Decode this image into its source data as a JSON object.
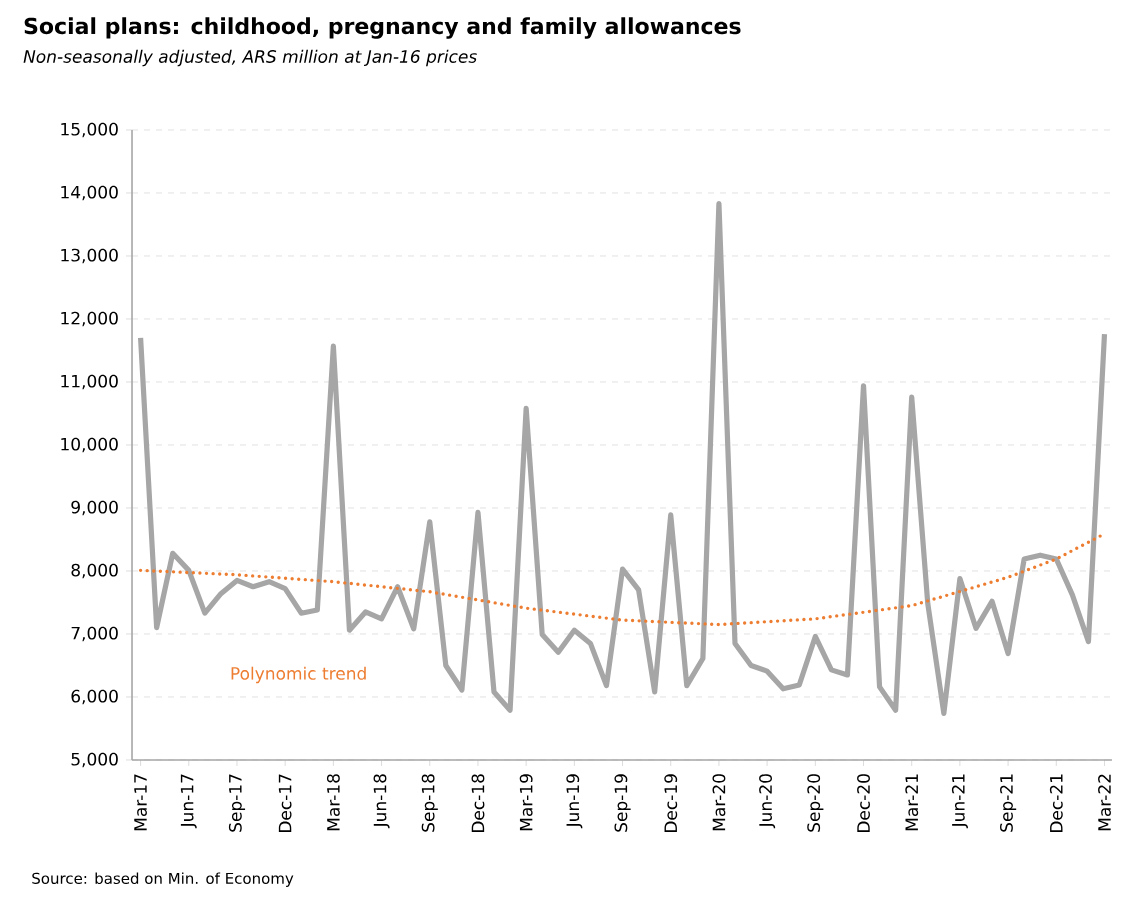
{
  "chart_data": {
    "type": "line",
    "title": "Social plans: childhood, pregnancy and family allowances",
    "subtitle": "Non-seasonally adjusted, ARS million at Jan-16 prices",
    "x": [
      "2017-03",
      "2017-04",
      "2017-05",
      "2017-06",
      "2017-07",
      "2017-08",
      "2017-09",
      "2017-10",
      "2017-11",
      "2017-12",
      "2018-01",
      "2018-02",
      "2018-03",
      "2018-04",
      "2018-05",
      "2018-06",
      "2018-07",
      "2018-08",
      "2018-09",
      "2018-10",
      "2018-11",
      "2018-12",
      "2019-01",
      "2019-02",
      "2019-03",
      "2019-04",
      "2019-05",
      "2019-06",
      "2019-07",
      "2019-08",
      "2019-09",
      "2019-10",
      "2019-11",
      "2019-12",
      "2020-01",
      "2020-02",
      "2020-03",
      "2020-04",
      "2020-05",
      "2020-06",
      "2020-07",
      "2020-08",
      "2020-09",
      "2020-10",
      "2020-11",
      "2020-12",
      "2021-01",
      "2021-02",
      "2021-03",
      "2021-04",
      "2021-05",
      "2021-06",
      "2021-07",
      "2021-08",
      "2021-09",
      "2021-10",
      "2021-11",
      "2021-12",
      "2022-01",
      "2022-02",
      "2022-03"
    ],
    "series": [
      {
        "color": "#a6a6a6",
        "values": [
          11700,
          7100,
          8280,
          8010,
          7330,
          7640,
          7850,
          7750,
          7830,
          7720,
          7330,
          7380,
          11570,
          7060,
          7350,
          7240,
          7750,
          7080,
          8780,
          6500,
          6110,
          8930,
          6080,
          5790,
          10580,
          6990,
          6710,
          7060,
          6850,
          6180,
          8030,
          7700,
          6080,
          8890,
          6180,
          6610,
          13830,
          6850,
          6500,
          6410,
          6130,
          6190,
          6960,
          6430,
          6350,
          10940,
          6160,
          5790,
          10760,
          7480,
          5740,
          7880,
          7090,
          7520,
          6690,
          8190,
          8250,
          8190,
          7620,
          6880,
          11760
        ]
      },
      {
        "type": "line",
        "color": "#ed7d31",
        "line_style": "dotted",
        "x": [
          "2017-03",
          "2017-09",
          "2018-03",
          "2018-09",
          "2019-03",
          "2019-09",
          "2020-03",
          "2020-09",
          "2021-03",
          "2021-09",
          "2021-12",
          "2022-03"
        ],
        "values": [
          8010,
          7940,
          7830,
          7670,
          7410,
          7220,
          7150,
          7240,
          7450,
          7900,
          8190,
          8590
        ]
      }
    ],
    "xlim": [
      "2017-02-15",
      "2022-03-15"
    ],
    "xticks": [
      {
        "value": "2017-03",
        "label": "Mar-17"
      },
      {
        "value": "2017-06",
        "label": "Jun-17"
      },
      {
        "value": "2017-09",
        "label": "Sep-17"
      },
      {
        "value": "2017-12",
        "label": "Dec-17"
      },
      {
        "value": "2018-03",
        "label": "Mar-18"
      },
      {
        "value": "2018-06",
        "label": "Jun-18"
      },
      {
        "value": "2018-09",
        "label": "Sep-18"
      },
      {
        "value": "2018-12",
        "label": "Dec-18"
      },
      {
        "value": "2019-03",
        "label": "Mar-19"
      },
      {
        "value": "2019-06",
        "label": "Jun-19"
      },
      {
        "value": "2019-09",
        "label": "Sep-19"
      },
      {
        "value": "2019-12",
        "label": "Dec-19"
      },
      {
        "value": "2020-03",
        "label": "Mar-20"
      },
      {
        "value": "2020-06",
        "label": "Jun-20"
      },
      {
        "value": "2020-09",
        "label": "Sep-20"
      },
      {
        "value": "2020-12",
        "label": "Dec-20"
      },
      {
        "value": "2021-03",
        "label": "Mar-21"
      },
      {
        "value": "2021-06",
        "label": "Jun-21"
      },
      {
        "value": "2021-09",
        "label": "Sep-21"
      },
      {
        "value": "2021-12",
        "label": "Dec-21"
      },
      {
        "value": "2022-03",
        "label": "Mar-22"
      }
    ],
    "ylim": [
      5000,
      15000
    ],
    "yticks": [
      {
        "value": 5000,
        "label": "5,000"
      },
      {
        "value": 6000,
        "label": "6,000"
      },
      {
        "value": 7000,
        "label": "7,000"
      },
      {
        "value": 8000,
        "label": "8,000"
      },
      {
        "value": 9000,
        "label": "9,000"
      },
      {
        "value": 10000,
        "label": "10,000"
      },
      {
        "value": 11000,
        "label": "11,000"
      },
      {
        "value": 12000,
        "label": "12,000"
      },
      {
        "value": 13000,
        "label": "13,000"
      },
      {
        "value": 14000,
        "label": "14,000"
      },
      {
        "value": 15000,
        "label": "15,000"
      }
    ],
    "grid": "y",
    "annotations": [
      "Polynomic trend",
      "Source: based on Min. of Economy"
    ]
  }
}
